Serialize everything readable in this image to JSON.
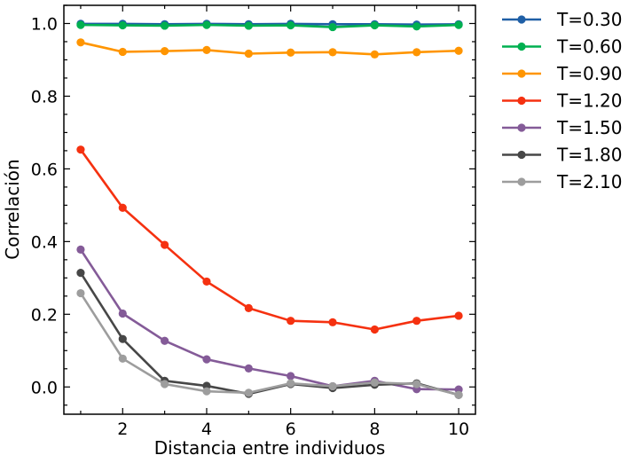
{
  "chart_data": {
    "type": "line",
    "title": "",
    "xlabel": "Distancia entre individuos",
    "ylabel": "Correlación",
    "xlim": [
      0.6,
      10.4
    ],
    "ylim": [
      -0.075,
      1.05
    ],
    "x_ticks": [
      2,
      4,
      6,
      8,
      10
    ],
    "y_ticks": [
      0.0,
      0.2,
      0.4,
      0.6,
      0.8,
      1.0
    ],
    "x_tick_labels": [
      "2",
      "4",
      "6",
      "8",
      "10"
    ],
    "y_tick_labels": [
      "0.0",
      "0.2",
      "0.4",
      "0.6",
      "0.8",
      "1.0"
    ],
    "grid": false,
    "legend_position": "outside-right",
    "x": [
      1,
      2,
      3,
      4,
      5,
      6,
      7,
      8,
      9,
      10
    ],
    "series": [
      {
        "name": "T=0.30",
        "color": "#1f5fa6",
        "values": [
          0.999,
          0.999,
          0.998,
          0.999,
          0.998,
          0.999,
          0.998,
          0.998,
          0.997,
          0.998
        ]
      },
      {
        "name": "T=0.60",
        "color": "#00b050",
        "values": [
          0.996,
          0.995,
          0.994,
          0.996,
          0.994,
          0.995,
          0.99,
          0.995,
          0.992,
          0.996
        ]
      },
      {
        "name": "T=0.90",
        "color": "#ff9500",
        "values": [
          0.948,
          0.922,
          0.924,
          0.927,
          0.917,
          0.92,
          0.921,
          0.915,
          0.921,
          0.925
        ]
      },
      {
        "name": "T=1.20",
        "color": "#f53110",
        "values": [
          0.653,
          0.493,
          0.391,
          0.29,
          0.217,
          0.182,
          0.178,
          0.158,
          0.182,
          0.196
        ]
      },
      {
        "name": "T=1.50",
        "color": "#845b98",
        "values": [
          0.378,
          0.202,
          0.127,
          0.076,
          0.051,
          0.03,
          0.002,
          0.017,
          -0.006,
          -0.007
        ]
      },
      {
        "name": "T=1.80",
        "color": "#474747",
        "values": [
          0.314,
          0.132,
          0.017,
          0.003,
          -0.019,
          0.008,
          -0.003,
          0.006,
          0.01,
          -0.022
        ]
      },
      {
        "name": "T=2.10",
        "color": "#9d9d9d",
        "values": [
          0.258,
          0.078,
          0.008,
          -0.012,
          -0.016,
          0.01,
          0.002,
          0.012,
          0.008,
          -0.022
        ]
      }
    ]
  }
}
